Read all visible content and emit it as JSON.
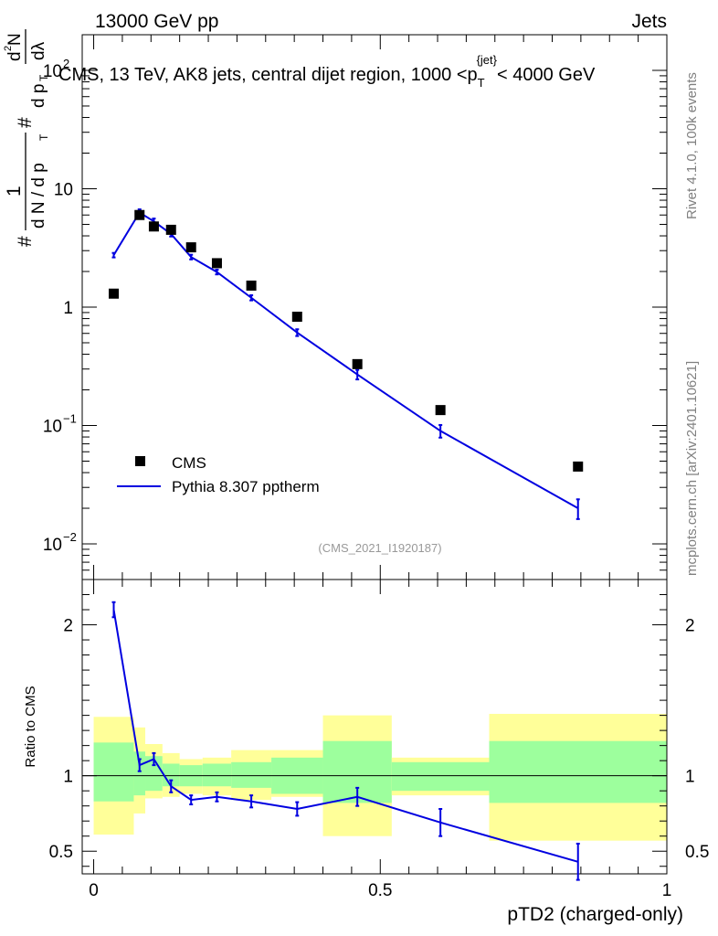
{
  "header": {
    "energy_label": "13000 GeV pp",
    "category_label": "Jets"
  },
  "side_labels": {
    "rivet": "Rivet 4.1.0,  100k events",
    "mcplots": "mcplots.cern.ch [arXiv:2401.10621]"
  },
  "watermark": "(CMS_2021_I1920187)",
  "chart_data": [
    {
      "type": "scatter",
      "title_prefix": "CMS, 13 TeV, AK8 jets, central dijet region, 1000 <",
      "title_p": "p",
      "title_sub": "T",
      "title_sup": "{jet}",
      "title_suffix": "< 4000 GeV",
      "ylabel_parts": [
        "#",
        "1",
        "d N / d p",
        "T",
        "#",
        "d p",
        "T",
        "d",
        "2",
        "N",
        "dλ"
      ],
      "yscale": "log",
      "ylim": [
        0.005,
        200
      ],
      "xlim": [
        -0.02,
        1.0
      ],
      "ytick_labels": [
        {
          "value": 0.01,
          "base": "10",
          "exp": "−2"
        },
        {
          "value": 0.1,
          "base": "10",
          "exp": "−1"
        },
        {
          "value": 1,
          "base": "1",
          "exp": ""
        },
        {
          "value": 10,
          "base": "10",
          "exp": ""
        },
        {
          "value": 100,
          "base": "10",
          "exp": "2"
        }
      ],
      "legend": {
        "position": "lower-left",
        "data_label": "CMS",
        "mc_label": "Pythia 8.307 pptherm"
      },
      "series": [
        {
          "name": "CMS",
          "color": "#000000",
          "x": [
            0.035,
            0.08,
            0.105,
            0.135,
            0.17,
            0.215,
            0.275,
            0.355,
            0.46,
            0.605,
            0.845
          ],
          "y": [
            1.3,
            6.0,
            4.8,
            4.5,
            3.2,
            2.35,
            1.52,
            0.83,
            0.33,
            0.135,
            0.045
          ]
        },
        {
          "name": "Pythia 8.307 pptherm",
          "color": "#0000e0",
          "x": [
            0.035,
            0.08,
            0.105,
            0.135,
            0.17,
            0.215,
            0.275,
            0.355,
            0.46,
            0.605,
            0.845
          ],
          "y": [
            2.75,
            6.3,
            5.3,
            4.15,
            2.65,
            1.98,
            1.2,
            0.61,
            0.27,
            0.09,
            0.02
          ],
          "yerr": [
            0.12,
            0.4,
            0.3,
            0.2,
            0.12,
            0.09,
            0.06,
            0.04,
            0.025,
            0.011,
            0.0038
          ]
        }
      ]
    },
    {
      "type": "line",
      "ylabel": "Ratio to CMS",
      "xlabel": "pTD2 (charged-only)",
      "xlim": [
        -0.02,
        1.0
      ],
      "ylim": [
        0.35,
        2.3
      ],
      "xtick_labels": [
        "0",
        "0.5",
        "1"
      ],
      "ytick_labels": [
        "0.5",
        "1",
        "2"
      ],
      "reference_line": 1,
      "band_edges": [
        0.0,
        0.07,
        0.09,
        0.12,
        0.15,
        0.19,
        0.24,
        0.31,
        0.4,
        0.52,
        0.69,
        1.0
      ],
      "band_inner": [
        [
          0.83,
          1.22
        ],
        [
          0.87,
          1.16
        ],
        [
          0.9,
          1.13
        ],
        [
          0.93,
          1.08
        ],
        [
          0.93,
          1.07
        ],
        [
          0.93,
          1.08
        ],
        [
          0.92,
          1.09
        ],
        [
          0.88,
          1.12
        ],
        [
          0.82,
          1.23
        ],
        [
          0.9,
          1.09
        ],
        [
          0.82,
          1.23
        ]
      ],
      "band_outer": [
        [
          0.61,
          1.39
        ],
        [
          0.75,
          1.32
        ],
        [
          0.85,
          1.21
        ],
        [
          0.86,
          1.15
        ],
        [
          0.88,
          1.11
        ],
        [
          0.87,
          1.12
        ],
        [
          0.84,
          1.17
        ],
        [
          0.86,
          1.17
        ],
        [
          0.6,
          1.4
        ],
        [
          0.87,
          1.12
        ],
        [
          0.57,
          1.41
        ]
      ],
      "band_colors": {
        "inner": "#9dff9d",
        "outer": "#ffff99"
      },
      "series": [
        {
          "name": "Pythia 8.307 pptherm / CMS",
          "color": "#0000e0",
          "x": [
            0.035,
            0.08,
            0.105,
            0.135,
            0.17,
            0.215,
            0.275,
            0.355,
            0.46,
            0.605,
            0.845
          ],
          "y": [
            2.1,
            1.07,
            1.11,
            0.93,
            0.84,
            0.86,
            0.83,
            0.78,
            0.86,
            0.69,
            0.43
          ],
          "yerr": [
            0.05,
            0.04,
            0.04,
            0.04,
            0.03,
            0.03,
            0.04,
            0.045,
            0.06,
            0.09,
            0.12
          ]
        }
      ]
    }
  ]
}
